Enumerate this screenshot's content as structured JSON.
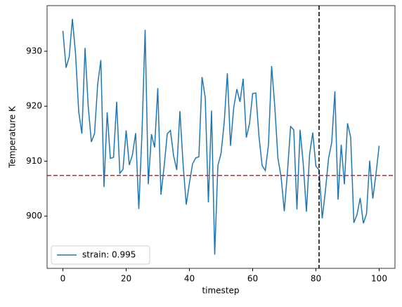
{
  "chart_data": {
    "type": "line",
    "xlabel": "timestep",
    "ylabel": "Temperature K",
    "x": [
      0,
      1,
      2,
      3,
      4,
      5,
      6,
      7,
      8,
      9,
      10,
      11,
      12,
      13,
      14,
      15,
      16,
      17,
      18,
      19,
      20,
      21,
      22,
      23,
      24,
      25,
      26,
      27,
      28,
      29,
      30,
      31,
      32,
      33,
      34,
      35,
      36,
      37,
      38,
      39,
      40,
      41,
      42,
      43,
      44,
      45,
      46,
      47,
      48,
      49,
      50,
      51,
      52,
      53,
      54,
      55,
      56,
      57,
      58,
      59,
      60,
      61,
      62,
      63,
      64,
      65,
      66,
      67,
      68,
      69,
      70,
      71,
      72,
      73,
      74,
      75,
      76,
      77,
      78,
      79,
      80,
      81,
      82,
      83,
      84,
      85,
      86,
      87,
      88,
      89,
      90,
      91,
      92,
      93,
      94,
      95,
      96,
      97,
      98,
      99,
      100
    ],
    "series": [
      {
        "name": "strain: 0.995",
        "color": "#1f77b4",
        "values": [
          933.7,
          927,
          929,
          935.9,
          929.5,
          919,
          915,
          930.6,
          920,
          913.5,
          915,
          924,
          928.4,
          905.3,
          918.9,
          910.5,
          910.7,
          920.8,
          907.8,
          908.5,
          915.6,
          909.3,
          911.2,
          915.1,
          901.3,
          915,
          933.9,
          905.8,
          914.9,
          912.5,
          923.3,
          903.9,
          909,
          915,
          915.6,
          911,
          908.4,
          919.1,
          909.5,
          902.1,
          906,
          909.5,
          910.6,
          910.8,
          925.3,
          921.6,
          902.5,
          919.2,
          893,
          909.2,
          911.4,
          917,
          926,
          912.8,
          919.7,
          923.1,
          920.8,
          925,
          914.3,
          916.8,
          922.3,
          922.4,
          914.5,
          909.2,
          908.3,
          913,
          927.3,
          919.9,
          910.5,
          907.1,
          900.9,
          908,
          916.3,
          915.7,
          901.2,
          915.7,
          909.5,
          900.8,
          911.2,
          915.2,
          909.1,
          908.4,
          899.6,
          904.6,
          910.5,
          913.4,
          922.7,
          903,
          913,
          905.8,
          916.9,
          914.3,
          898.8,
          900.3,
          903.3,
          898.7,
          900.4,
          910.1,
          903.2,
          907.7,
          912.8
        ]
      }
    ],
    "hlines": [
      {
        "y": 907.4,
        "color": "#d62728"
      }
    ],
    "vlines": [
      {
        "x": 81,
        "color": "#000000"
      }
    ],
    "xlim": [
      -5,
      105
    ],
    "xticks": [
      0,
      20,
      40,
      60,
      80,
      100
    ],
    "ylim": [
      890.5,
      938.3
    ],
    "yticks": [
      900,
      910,
      920,
      930
    ],
    "legend": "lower left"
  }
}
